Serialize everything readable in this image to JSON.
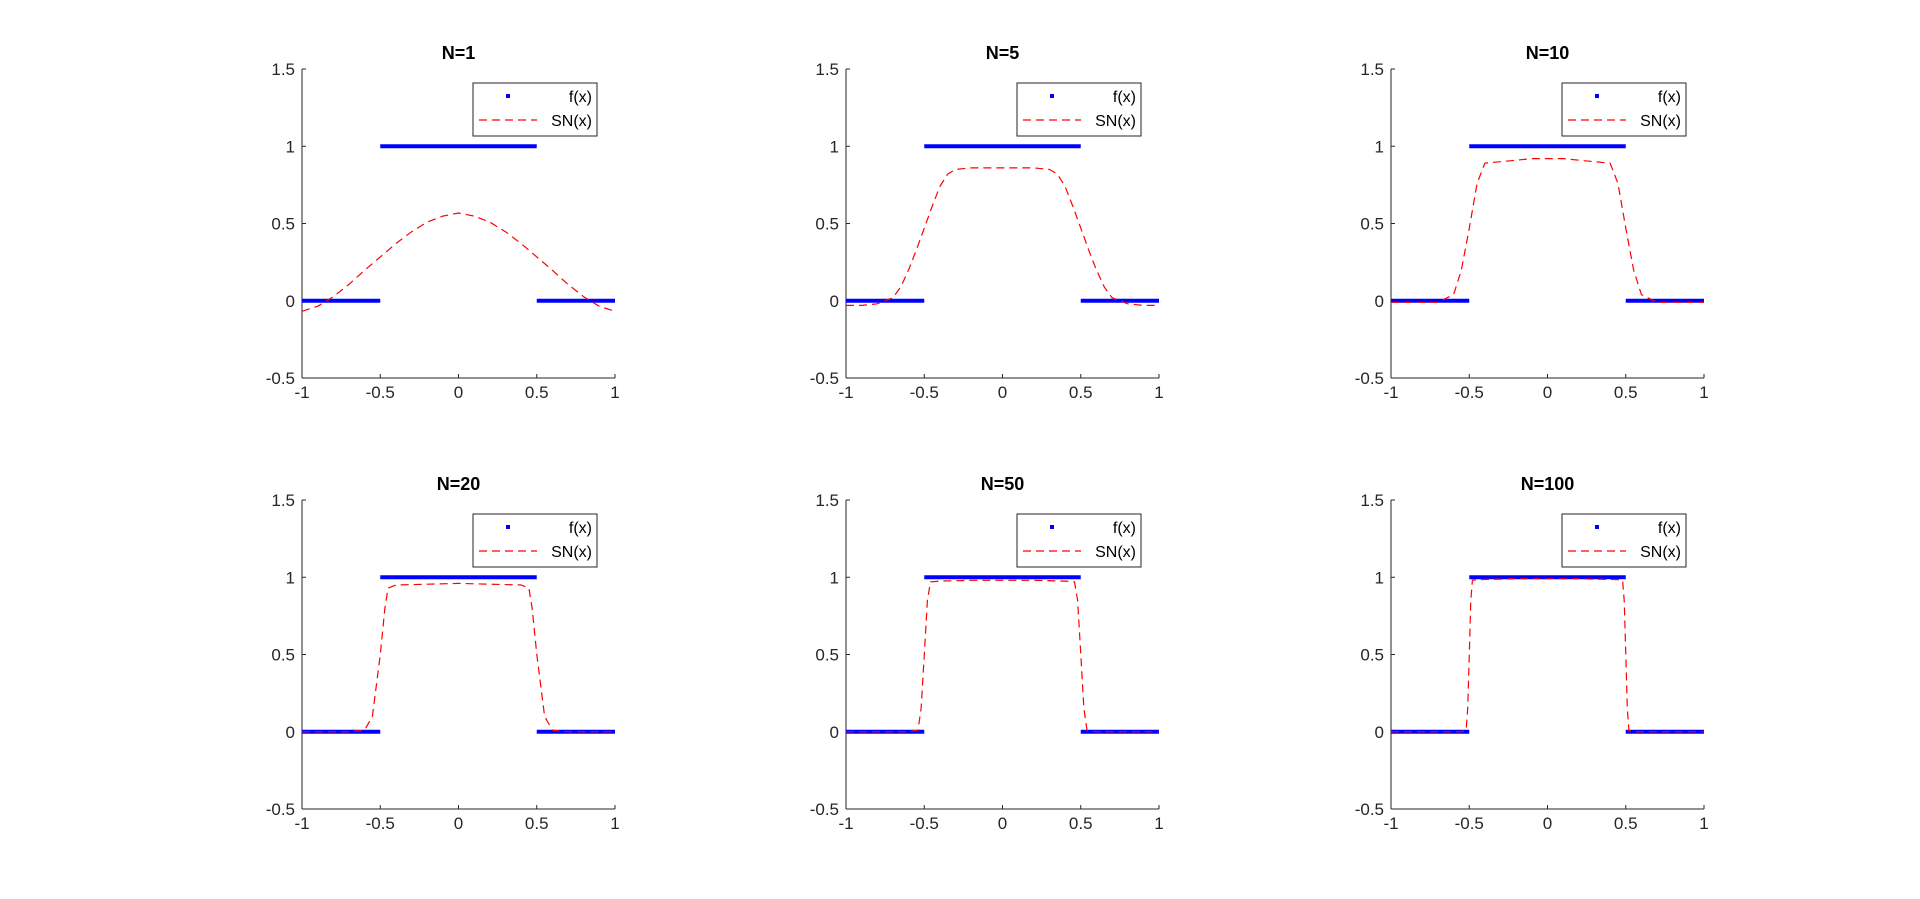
{
  "colors": {
    "f": "#0000ff",
    "sn": "#ff0000",
    "axis": "#262626"
  },
  "chart_data": [
    {
      "type": "line",
      "title": "N=1",
      "xlim": [
        -1,
        1
      ],
      "ylim": [
        -0.5,
        1.5
      ],
      "xticks": [
        "-1",
        "-0.5",
        "0",
        "0.5",
        "1"
      ],
      "yticks": [
        "-0.5",
        "0",
        "0.5",
        "1",
        "1.5"
      ],
      "xlabel": "",
      "ylabel": "",
      "grid": false,
      "legend_position": "top-right",
      "series": [
        {
          "name": "f(x)",
          "style": "blue-dots",
          "segments": [
            {
              "x": [
                -1,
                -0.5
              ],
              "y": [
                0,
                0
              ]
            },
            {
              "x": [
                -0.5,
                0.5
              ],
              "y": [
                1,
                1
              ]
            },
            {
              "x": [
                0.5,
                1
              ],
              "y": [
                0,
                0
              ]
            }
          ]
        },
        {
          "name": "SN(x)",
          "style": "red-dashed",
          "x": [
            -1,
            -0.9,
            -0.8,
            -0.7,
            -0.6,
            -0.5,
            -0.4,
            -0.3,
            -0.2,
            -0.1,
            0,
            0.1,
            0.2,
            0.3,
            0.4,
            0.5,
            0.6,
            0.7,
            0.8,
            0.9,
            1
          ],
          "y": [
            -0.068,
            -0.036,
            0.026,
            0.106,
            0.197,
            0.284,
            0.37,
            0.447,
            0.509,
            0.548,
            0.568,
            0.548,
            0.509,
            0.447,
            0.37,
            0.284,
            0.197,
            0.106,
            0.026,
            -0.036,
            -0.068
          ]
        }
      ]
    },
    {
      "type": "line",
      "title": "N=5",
      "xlim": [
        -1,
        1
      ],
      "ylim": [
        -0.5,
        1.5
      ],
      "xticks": [
        "-1",
        "-0.5",
        "0",
        "0.5",
        "1"
      ],
      "yticks": [
        "-0.5",
        "0",
        "0.5",
        "1",
        "1.5"
      ],
      "xlabel": "",
      "ylabel": "",
      "grid": false,
      "legend_position": "top-right",
      "series": [
        {
          "name": "f(x)",
          "style": "blue-dots",
          "segments": [
            {
              "x": [
                -1,
                -0.5
              ],
              "y": [
                0,
                0
              ]
            },
            {
              "x": [
                -0.5,
                0.5
              ],
              "y": [
                1,
                1
              ]
            },
            {
              "x": [
                0.5,
                1
              ],
              "y": [
                0,
                0
              ]
            }
          ]
        },
        {
          "name": "SN(x)",
          "style": "red-dashed",
          "x": [
            -1,
            -0.9,
            -0.8,
            -0.7,
            -0.65,
            -0.6,
            -0.55,
            -0.5,
            -0.45,
            -0.4,
            -0.35,
            -0.3,
            -0.2,
            -0.1,
            0,
            0.1,
            0.2,
            0.3,
            0.35,
            0.4,
            0.45,
            0.5,
            0.55,
            0.6,
            0.65,
            0.7,
            0.8,
            0.9,
            1
          ],
          "y": [
            -0.03,
            -0.03,
            -0.02,
            0.02,
            0.09,
            0.2,
            0.33,
            0.47,
            0.61,
            0.74,
            0.82,
            0.85,
            0.86,
            0.86,
            0.86,
            0.86,
            0.86,
            0.85,
            0.82,
            0.74,
            0.61,
            0.47,
            0.33,
            0.2,
            0.09,
            0.02,
            -0.02,
            -0.03,
            -0.03
          ]
        }
      ]
    },
    {
      "type": "line",
      "title": "N=10",
      "xlim": [
        -1,
        1
      ],
      "ylim": [
        -0.5,
        1.5
      ],
      "xticks": [
        "-1",
        "-0.5",
        "0",
        "0.5",
        "1"
      ],
      "yticks": [
        "-0.5",
        "0",
        "0.5",
        "1",
        "1.5"
      ],
      "xlabel": "",
      "ylabel": "",
      "grid": false,
      "legend_position": "top-right",
      "series": [
        {
          "name": "f(x)",
          "style": "blue-dots",
          "segments": [
            {
              "x": [
                -1,
                -0.5
              ],
              "y": [
                0,
                0
              ]
            },
            {
              "x": [
                -0.5,
                0.5
              ],
              "y": [
                1,
                1
              ]
            },
            {
              "x": [
                0.5,
                1
              ],
              "y": [
                0,
                0
              ]
            }
          ]
        },
        {
          "name": "SN(x)",
          "style": "red-dashed",
          "x": [
            -1,
            -0.8,
            -0.7,
            -0.6,
            -0.55,
            -0.5,
            -0.45,
            -0.4,
            -0.3,
            -0.2,
            -0.1,
            0,
            0.1,
            0.2,
            0.3,
            0.4,
            0.45,
            0.5,
            0.55,
            0.6,
            0.7,
            0.8,
            1
          ],
          "y": [
            -0.01,
            -0.01,
            -0.01,
            0.04,
            0.2,
            0.47,
            0.76,
            0.89,
            0.9,
            0.91,
            0.92,
            0.92,
            0.92,
            0.91,
            0.9,
            0.89,
            0.76,
            0.47,
            0.2,
            0.04,
            -0.01,
            -0.01,
            -0.01
          ]
        }
      ]
    },
    {
      "type": "line",
      "title": "N=20",
      "xlim": [
        -1,
        1
      ],
      "ylim": [
        -0.5,
        1.5
      ],
      "xticks": [
        "-1",
        "-0.5",
        "0",
        "0.5",
        "1"
      ],
      "yticks": [
        "-0.5",
        "0",
        "0.5",
        "1",
        "1.5"
      ],
      "xlabel": "",
      "ylabel": "",
      "grid": false,
      "legend_position": "top-right",
      "series": [
        {
          "name": "f(x)",
          "style": "blue-dots",
          "segments": [
            {
              "x": [
                -1,
                -0.5
              ],
              "y": [
                0,
                0
              ]
            },
            {
              "x": [
                -0.5,
                0.5
              ],
              "y": [
                1,
                1
              ]
            },
            {
              "x": [
                0.5,
                1
              ],
              "y": [
                0,
                0
              ]
            }
          ]
        },
        {
          "name": "SN(x)",
          "style": "red-dashed",
          "x": [
            -1,
            -0.7,
            -0.6,
            -0.55,
            -0.5,
            -0.47,
            -0.45,
            -0.4,
            -0.2,
            0,
            0.2,
            0.4,
            0.45,
            0.47,
            0.5,
            0.55,
            0.6,
            0.7,
            1
          ],
          "y": [
            0,
            0,
            0.01,
            0.1,
            0.5,
            0.8,
            0.93,
            0.95,
            0.955,
            0.96,
            0.955,
            0.95,
            0.93,
            0.8,
            0.5,
            0.1,
            0.01,
            0,
            0
          ]
        }
      ]
    },
    {
      "type": "line",
      "title": "N=50",
      "xlim": [
        -1,
        1
      ],
      "ylim": [
        -0.5,
        1.5
      ],
      "xticks": [
        "-1",
        "-0.5",
        "0",
        "0.5",
        "1"
      ],
      "yticks": [
        "-0.5",
        "0",
        "0.5",
        "1",
        "1.5"
      ],
      "xlabel": "",
      "ylabel": "",
      "grid": false,
      "legend_position": "top-right",
      "series": [
        {
          "name": "f(x)",
          "style": "blue-dots",
          "segments": [
            {
              "x": [
                -1,
                -0.5
              ],
              "y": [
                0,
                0
              ]
            },
            {
              "x": [
                -0.5,
                0.5
              ],
              "y": [
                1,
                1
              ]
            },
            {
              "x": [
                0.5,
                1
              ],
              "y": [
                0,
                0
              ]
            }
          ]
        },
        {
          "name": "SN(x)",
          "style": "red-dashed",
          "x": [
            -1,
            -0.6,
            -0.54,
            -0.52,
            -0.5,
            -0.48,
            -0.46,
            -0.4,
            -0.2,
            0,
            0.2,
            0.4,
            0.46,
            0.48,
            0.5,
            0.52,
            0.54,
            0.6,
            1
          ],
          "y": [
            0,
            0,
            0.01,
            0.15,
            0.5,
            0.85,
            0.97,
            0.975,
            0.98,
            0.98,
            0.98,
            0.975,
            0.97,
            0.85,
            0.5,
            0.15,
            0.01,
            0,
            0
          ]
        }
      ]
    },
    {
      "type": "line",
      "title": "N=100",
      "xlim": [
        -1,
        1
      ],
      "ylim": [
        -0.5,
        1.5
      ],
      "xticks": [
        "-1",
        "-0.5",
        "0",
        "0.5",
        "1"
      ],
      "yticks": [
        "-0.5",
        "0",
        "0.5",
        "1",
        "1.5"
      ],
      "xlabel": "",
      "ylabel": "",
      "grid": false,
      "legend_position": "top-right",
      "series": [
        {
          "name": "f(x)",
          "style": "blue-dots",
          "segments": [
            {
              "x": [
                -1,
                -0.5
              ],
              "y": [
                0,
                0
              ]
            },
            {
              "x": [
                -0.5,
                0.5
              ],
              "y": [
                1,
                1
              ]
            },
            {
              "x": [
                0.5,
                1
              ],
              "y": [
                0,
                0
              ]
            }
          ]
        },
        {
          "name": "SN(x)",
          "style": "red-dashed",
          "x": [
            -1,
            -0.55,
            -0.52,
            -0.51,
            -0.5,
            -0.49,
            -0.48,
            -0.45,
            -0.2,
            0,
            0.2,
            0.45,
            0.48,
            0.49,
            0.5,
            0.51,
            0.52,
            0.55,
            1
          ],
          "y": [
            0,
            0,
            0.01,
            0.15,
            0.5,
            0.85,
            0.98,
            0.985,
            0.99,
            0.99,
            0.99,
            0.985,
            0.98,
            0.85,
            0.5,
            0.15,
            0.01,
            0,
            0
          ]
        }
      ]
    }
  ]
}
